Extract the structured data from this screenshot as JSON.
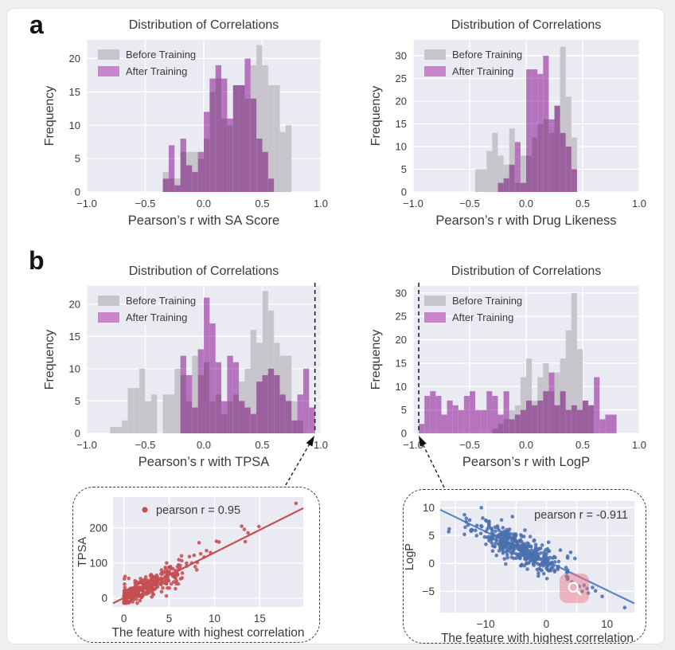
{
  "figure": {
    "panel_a_label": "a",
    "panel_b_label": "b"
  },
  "colors": {
    "plot_bg": "#eaeaf2",
    "grid": "#ffffff",
    "text": "#3a3a3a",
    "before_bar": "#c7c5cb",
    "after_bar": "#c77ec8",
    "red_series": "#c44e52",
    "blue_series": "#4a6fae",
    "blue_line": "#5b84c4",
    "annotation": "#2a2a2a",
    "watermark_pink": "#ea7884"
  },
  "watermark": {
    "icon": "magnifier"
  },
  "chart_data": [
    {
      "id": "hist-sa-score",
      "type": "bar",
      "variant": "overlaid-histogram",
      "title": "Distribution of Correlations",
      "xlabel": "Pearson’s r with SA Score",
      "ylabel": "Frequency",
      "xlim": [
        -1.0,
        1.0
      ],
      "ylim": [
        0,
        22.8
      ],
      "xtick_vals": [
        -1.0,
        -0.5,
        0.0,
        0.5,
        1.0
      ],
      "xtick_labels": [
        "−1.0",
        "−0.5",
        "0.0",
        "0.5",
        "1.0"
      ],
      "yticks": [
        0,
        5,
        10,
        15,
        20
      ],
      "bin_width": 0.05,
      "grid": true,
      "legend_position": "upper-left",
      "series": [
        {
          "name": "Before Training",
          "bin_start": -0.35,
          "values": [
            3,
            2,
            2,
            6,
            6,
            6,
            5,
            8,
            15,
            17,
            11,
            10,
            16,
            16,
            14,
            19,
            22,
            19,
            16,
            16,
            9,
            10
          ]
        },
        {
          "name": "After Training",
          "bin_start": -0.35,
          "values": [
            2,
            7,
            1,
            8,
            4,
            3,
            6,
            12,
            17,
            19,
            17,
            11,
            16,
            16,
            20,
            14,
            8,
            6,
            2
          ]
        }
      ],
      "vline": null
    },
    {
      "id": "hist-drug-likeness",
      "type": "bar",
      "variant": "overlaid-histogram",
      "title": "Distribution of Correlations",
      "xlabel": "Pearson’s r with Drug Likeness",
      "ylabel": "Frequency",
      "xlim": [
        -1.0,
        1.0
      ],
      "ylim": [
        0,
        33.5
      ],
      "xtick_vals": [
        -1.0,
        -0.5,
        0.0,
        0.5,
        1.0
      ],
      "xtick_labels": [
        "−1.0",
        "−0.5",
        "0.0",
        "0.5",
        "1.0"
      ],
      "yticks": [
        0,
        5,
        10,
        15,
        20,
        25,
        30
      ],
      "bin_width": 0.05,
      "grid": true,
      "legend_position": "upper-left",
      "series": [
        {
          "name": "Before Training",
          "bin_start": -0.45,
          "values": [
            5,
            5,
            9,
            13,
            8,
            6,
            14,
            2,
            8,
            8,
            12,
            15,
            16,
            13,
            19,
            32,
            21,
            12
          ]
        },
        {
          "name": "After Training",
          "bin_start": -0.25,
          "values": [
            2,
            3,
            6,
            11,
            2,
            27,
            27,
            26,
            30,
            16,
            19,
            13,
            10,
            5
          ]
        }
      ],
      "vline": null
    },
    {
      "id": "hist-tpsa",
      "type": "bar",
      "variant": "overlaid-histogram",
      "title": "Distribution of Correlations",
      "xlabel": "Pearson’s r with TPSA",
      "ylabel": "Frequency",
      "xlim": [
        -1.0,
        1.0
      ],
      "ylim": [
        0,
        22.8
      ],
      "xtick_vals": [
        -1.0,
        -0.5,
        0.0,
        0.5,
        1.0
      ],
      "xtick_labels": [
        "−1.0",
        "−0.5",
        "0.0",
        "0.5",
        "1.0"
      ],
      "yticks": [
        0,
        5,
        10,
        15,
        20
      ],
      "bin_width": 0.05,
      "grid": true,
      "legend_position": "upper-left",
      "series": [
        {
          "name": "Before Training",
          "bin_start": -0.8,
          "values": [
            1,
            1,
            2,
            7,
            7,
            10,
            5,
            6,
            0,
            6,
            6,
            10,
            9,
            5,
            12,
            9,
            11,
            5,
            6,
            3,
            5,
            6,
            8,
            10,
            16,
            14,
            22,
            19,
            14,
            12,
            12,
            5,
            2
          ]
        },
        {
          "name": "After Training",
          "bin_start": -0.2,
          "values": [
            12,
            9,
            4,
            13,
            21,
            17,
            11,
            5,
            12,
            11,
            5,
            4,
            3,
            8,
            9,
            10,
            9,
            6,
            5,
            2,
            6,
            10,
            4
          ]
        }
      ],
      "vline": 0.95
    },
    {
      "id": "hist-logp",
      "type": "bar",
      "variant": "overlaid-histogram",
      "title": "Distribution of Correlations",
      "xlabel": "Pearson’s r with LogP",
      "ylabel": "Frequency",
      "xlim": [
        -1.0,
        1.0
      ],
      "ylim": [
        0,
        31.5
      ],
      "xtick_vals": [
        -1.0,
        -0.5,
        0.0,
        0.5,
        1.0
      ],
      "xtick_labels": [
        "−1.0",
        "−0.5",
        "0.0",
        "0.5",
        "1.0"
      ],
      "yticks": [
        0,
        5,
        10,
        15,
        20,
        25,
        30
      ],
      "bin_width": 0.05,
      "grid": true,
      "legend_position": "upper-left",
      "series": [
        {
          "name": "Before Training",
          "bin_start": -0.3,
          "values": [
            1,
            2,
            3,
            5,
            6,
            12,
            16,
            7,
            12,
            15,
            9,
            13,
            16,
            22,
            30,
            18,
            7,
            6
          ]
        },
        {
          "name": "After Training",
          "bin_start": -0.95,
          "values": [
            2,
            8,
            9,
            8,
            4,
            7,
            6,
            5,
            8,
            9,
            5,
            5,
            9,
            8,
            4,
            9,
            3,
            4,
            5,
            7,
            6,
            7,
            9,
            13,
            6,
            9,
            5,
            6,
            5,
            7,
            6,
            12,
            3,
            4,
            4
          ]
        }
      ],
      "vline": -0.95
    },
    {
      "id": "scatter-tpsa",
      "type": "scatter",
      "legend_label": "pearson r = 0.95",
      "legend_marker": true,
      "legend_position": "upper-left",
      "xlabel": "The feature with highest correlation",
      "ylabel": "TPSA",
      "xlim": [
        -1.2,
        19.8
      ],
      "ylim": [
        -25,
        288
      ],
      "xtick_vals": [
        0,
        5,
        10,
        15
      ],
      "ytick_vals": [
        0,
        100,
        200
      ],
      "grid_x": [
        0,
        5,
        10,
        15
      ],
      "grid_y": [
        0,
        100,
        200
      ],
      "trend": {
        "slope": 12.9,
        "intercept": 1.0
      },
      "cloud": {
        "seed": 7,
        "n": 320,
        "x_dist": "halfnormal",
        "x_scale": 3.4,
        "x_max": 12.5,
        "zero_frac": 0.12,
        "noise_base": 12,
        "noise_slope": 1.6,
        "y_min": -14
      },
      "outliers": [
        [
          19,
          270
        ],
        [
          13,
          205
        ],
        [
          13.3,
          196
        ],
        [
          13.7,
          186
        ],
        [
          14.9,
          204
        ],
        [
          13.4,
          161
        ],
        [
          8.3,
          158
        ],
        [
          10.5,
          160
        ],
        [
          0.05,
          55
        ],
        [
          0.07,
          40
        ],
        [
          0.1,
          30
        ],
        [
          0.12,
          62
        ]
      ]
    },
    {
      "id": "scatter-logp",
      "type": "scatter",
      "legend_label": "pearson r = -0.911",
      "legend_marker": false,
      "legend_position": "upper-right",
      "xlabel": "The feature with highest correlation",
      "ylabel": "LogP",
      "xlim": [
        -17.5,
        14.5
      ],
      "ylim": [
        -8.8,
        11.2
      ],
      "xtick_vals": [
        -10,
        0,
        10
      ],
      "ytick_vals": [
        -5,
        0,
        5,
        10
      ],
      "grid_x": [
        -15,
        -10,
        -5,
        0,
        5,
        10
      ],
      "grid_y": [
        -5,
        0,
        5,
        10
      ],
      "trend": {
        "slope": -0.525,
        "intercept": 0.45
      },
      "cloud": {
        "seed": 11,
        "n": 400,
        "x_dist": "normal",
        "x_mean": -4.3,
        "x_sd": 3.6,
        "x_min": -13.5,
        "x_max": 3.5,
        "noise_base": 1.35
      },
      "outliers": [
        [
          -16,
          6.2
        ],
        [
          -16.1,
          5.7
        ],
        [
          -13.2,
          8.1
        ],
        [
          -5.6,
          8.4
        ],
        [
          -12.9,
          6.9
        ],
        [
          2.3,
          2.4
        ],
        [
          3.3,
          -2.3
        ],
        [
          4.2,
          -3.3
        ],
        [
          5.4,
          -4.1
        ],
        [
          6.2,
          -3.9
        ],
        [
          6.7,
          -4.5
        ],
        [
          5.9,
          -5.0
        ],
        [
          6.9,
          -5.3
        ],
        [
          9.2,
          -5.9
        ],
        [
          12.9,
          -7.9
        ],
        [
          4.0,
          2.0
        ],
        [
          4.7,
          0.9
        ],
        [
          7.6,
          -4.3
        ],
        [
          8.1,
          -4.9
        ]
      ]
    }
  ]
}
